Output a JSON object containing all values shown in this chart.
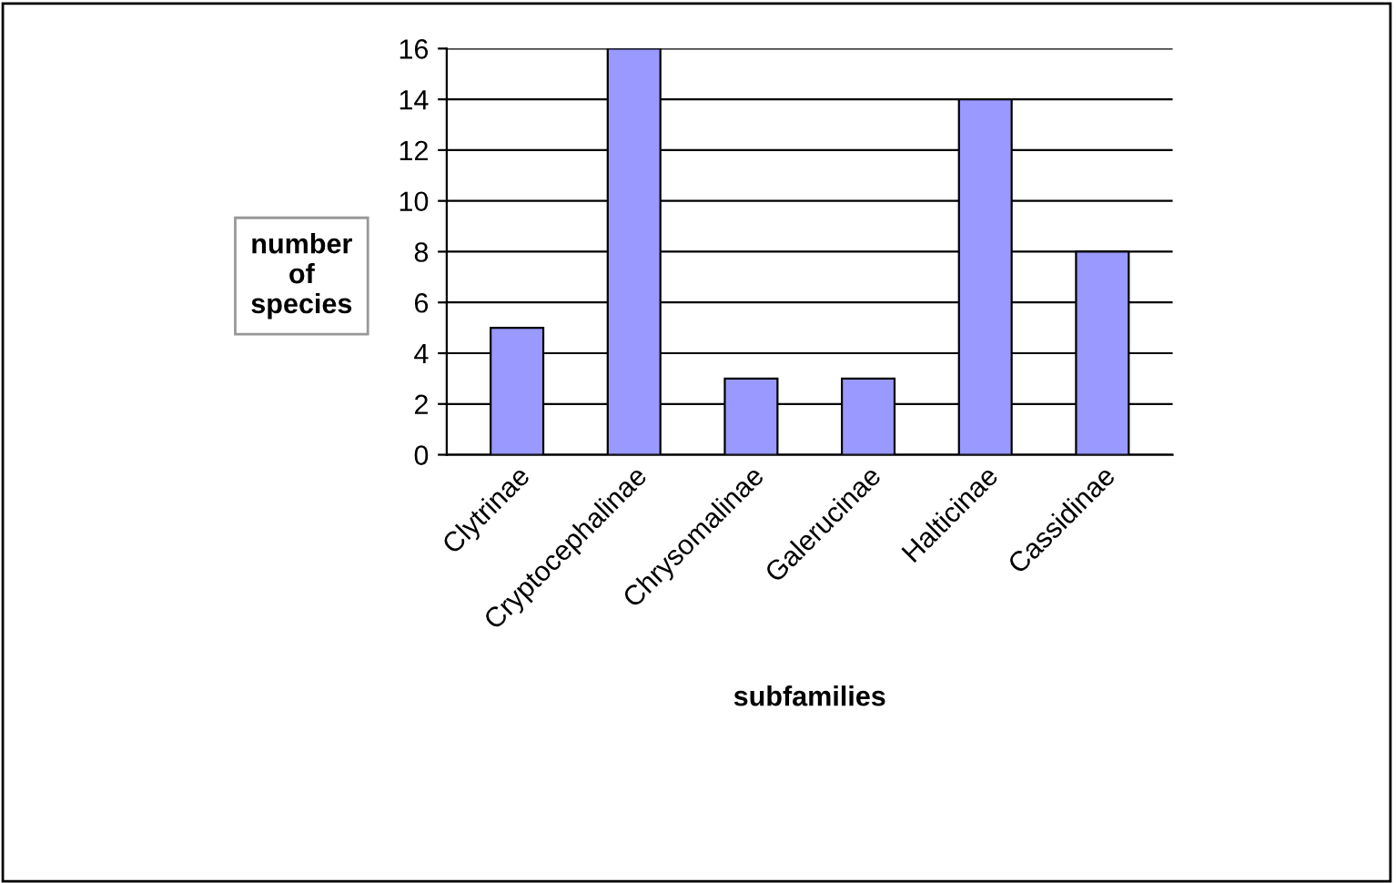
{
  "chart_data": {
    "type": "bar",
    "xlabel": "subfamilies",
    "ylabel": "number of species",
    "categories": [
      "Clytrinae",
      "Cryptocephalinae",
      "Chrysomalinae",
      "Galerucinae",
      "Halticinae",
      "Cassidinae"
    ],
    "values": [
      5,
      16,
      3,
      3,
      14,
      8
    ],
    "color": "#9999ff",
    "ylim": [
      0,
      16
    ],
    "yticks": [
      0,
      2,
      4,
      6,
      8,
      10,
      12,
      14,
      16
    ],
    "grid": "y",
    "legend": false
  }
}
